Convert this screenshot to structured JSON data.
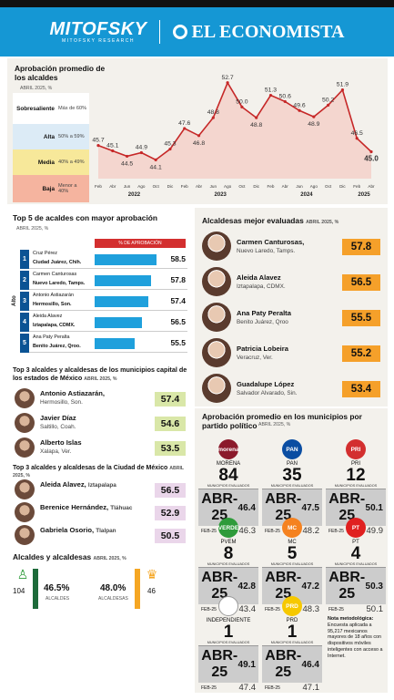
{
  "header": {
    "logo_left": "MITOFSKY",
    "logo_left_sub": "MITOFSKY RESEARCH",
    "logo_right": "EL ECONOMISTA"
  },
  "trend": {
    "title": "Aprobación promedio de los alcaldes",
    "subtitle": "ABRIL 2025, %",
    "bands": [
      {
        "label": "Sobresaliente",
        "range": "Más de 60%",
        "color": "#ffffff"
      },
      {
        "label": "Alta",
        "range": "50% a 59%",
        "color": "#dcebf6"
      },
      {
        "label": "Media",
        "range": "40% a 49%",
        "color": "#f7e89a"
      },
      {
        "label": "Baja",
        "range": "Menor a 40%",
        "color": "#f5b49f"
      }
    ]
  },
  "chart_data": {
    "type": "line",
    "x": [
      "Feb",
      "Abr",
      "Jun",
      "Ago",
      "Oct",
      "Dic",
      "Feb",
      "Abr",
      "Jun",
      "Ago",
      "Oct",
      "Dic",
      "Feb",
      "Abr",
      "Jun",
      "Ago",
      "Oct",
      "Dic",
      "Feb",
      "Abr"
    ],
    "year_labels": [
      {
        "label": "2022",
        "at": 2.5
      },
      {
        "label": "2023",
        "at": 8.5
      },
      {
        "label": "2024",
        "at": 14.5
      },
      {
        "label": "2025",
        "at": 18.5
      }
    ],
    "values": [
      45.7,
      45.1,
      44.5,
      44.9,
      44.1,
      45.3,
      47.6,
      46.8,
      48.8,
      52.7,
      50.0,
      48.8,
      51.3,
      50.6,
      49.6,
      48.9,
      50.2,
      51.9,
      46.5,
      45.0
    ],
    "ylim": [
      42,
      54
    ]
  },
  "top5": {
    "title": "Top 5 de acaldes con mayor aprobación",
    "subtitle": "ABRIL 2025, %",
    "col_header": "% DE APROBACIÓN",
    "axis_label": "Alto",
    "rows": [
      {
        "rank": "1",
        "name": "Cruz Pérez",
        "place": "Ciudad Juárez, Chih.",
        "value": 58.5
      },
      {
        "rank": "2",
        "name": "Carmen Canturosas",
        "place": "Nuevo Laredo, Tamps.",
        "value": 57.8
      },
      {
        "rank": "3",
        "name": "Antonio Astiazarán",
        "place": "Hermosillo, Son.",
        "value": 57.4
      },
      {
        "rank": "4",
        "name": "Aleida Alavez",
        "place": "Iztapalapa, CDMX.",
        "value": 56.5
      },
      {
        "rank": "5",
        "name": "Ana Paty Peralta",
        "place": "Benito Juárez, Qroo.",
        "value": 55.5
      }
    ]
  },
  "capitales": {
    "title": "Top 3 alcaldes y alcaldesas de los municipios capital de los estados de México",
    "subtitle": "ABRIL 2025, %",
    "rows": [
      {
        "name": "Antonio Astiazarán,",
        "place": "Hermosillo, Son.",
        "value": "57.4"
      },
      {
        "name": "Javier Díaz",
        "place": "Saltillo, Coah.",
        "value": "54.6"
      },
      {
        "name": "Alberto Islas",
        "place": "Xalapa, Ver.",
        "value": "53.5"
      }
    ]
  },
  "cdmx": {
    "title": "Top 3 alcaldes y alcaldesas de la Ciudad de México",
    "subtitle": "ABRIL 2025, %",
    "rows": [
      {
        "name": "Aleida Alavez,",
        "place": "Iztapalapa",
        "value": "56.5"
      },
      {
        "name": "Berenice Hernández,",
        "place": "Tláhuac",
        "value": "52.9"
      },
      {
        "name": "Gabriela Osorio,",
        "place": "Tlalpan",
        "value": "50.5"
      }
    ]
  },
  "genero": {
    "title": "Alcaldes y alcaldesas",
    "subtitle": "ABRIL 2025, %",
    "men_count": "104",
    "men_pct": "46.5%",
    "men_label": "ALCALDES",
    "women_pct": "48.0%",
    "women_label": "ALCALDESAS",
    "women_count": "46"
  },
  "mejor": {
    "title": "Alcaldesas mejor evaluadas",
    "subtitle": "ABRIL 2025, %",
    "rows": [
      {
        "name": "Carmen Canturosas,",
        "place": "Nuevo Laredo, Tamps.",
        "value": "57.8"
      },
      {
        "name": "Aleida Alavez",
        "place": "Iztapalapa, CDMX.",
        "value": "56.5"
      },
      {
        "name": "Ana Paty Peralta",
        "place": "Benito Juárez, Qroo",
        "value": "55.5"
      },
      {
        "name": "Patricia Lobeira",
        "place": "Veracruz, Ver.",
        "value": "55.2"
      },
      {
        "name": "Guadalupe López",
        "place": "Salvador Alvarado, Sin.",
        "value": "53.4"
      }
    ]
  },
  "partidos": {
    "title": "Aprobación promedio en los municipios por partido político",
    "subtitle": "ABRIL 2025, %",
    "municipios_label": "MUNICIPIOS EVALUADOS",
    "abr_label": "ABR-25",
    "feb_label": "FEB-25",
    "items": [
      {
        "name": "MORENA",
        "logo_text": "morena",
        "color": "#8b1a2b",
        "count": "84",
        "abr": "46.4",
        "feb": "46.3"
      },
      {
        "name": "PAN",
        "logo_text": "PAN",
        "color": "#0a4da2",
        "count": "35",
        "abr": "47.5",
        "feb": "48.2"
      },
      {
        "name": "PRI",
        "logo_text": "PRI",
        "color": "#d32f2f",
        "count": "12",
        "abr": "50.1",
        "feb": "49.9"
      },
      {
        "name": "PVEM",
        "logo_text": "VERDE",
        "color": "#2e9b3a",
        "count": "8",
        "abr": "42.8",
        "feb": "43.4"
      },
      {
        "name": "MC",
        "logo_text": "MC",
        "color": "#f58220",
        "count": "5",
        "abr": "47.2",
        "feb": "48.3"
      },
      {
        "name": "PT",
        "logo_text": "PT",
        "color": "#e02020",
        "count": "4",
        "abr": "50.3",
        "feb": "50.1"
      },
      {
        "name": "INDEPENDIENTE",
        "logo_text": "",
        "color": "#ffffff",
        "count": "1",
        "abr": "49.1",
        "feb": "47.4"
      },
      {
        "name": "PRD",
        "logo_text": "PRD",
        "color": "#f6c800",
        "count": "1",
        "abr": "46.4",
        "feb": "47.1"
      }
    ]
  },
  "nota": {
    "title": "Nota metodológica:",
    "text": "Encuesta aplicada a 95,217 mexicanos mayores de 18 años con dispositivos móviles inteligentes con acceso a Internet."
  }
}
